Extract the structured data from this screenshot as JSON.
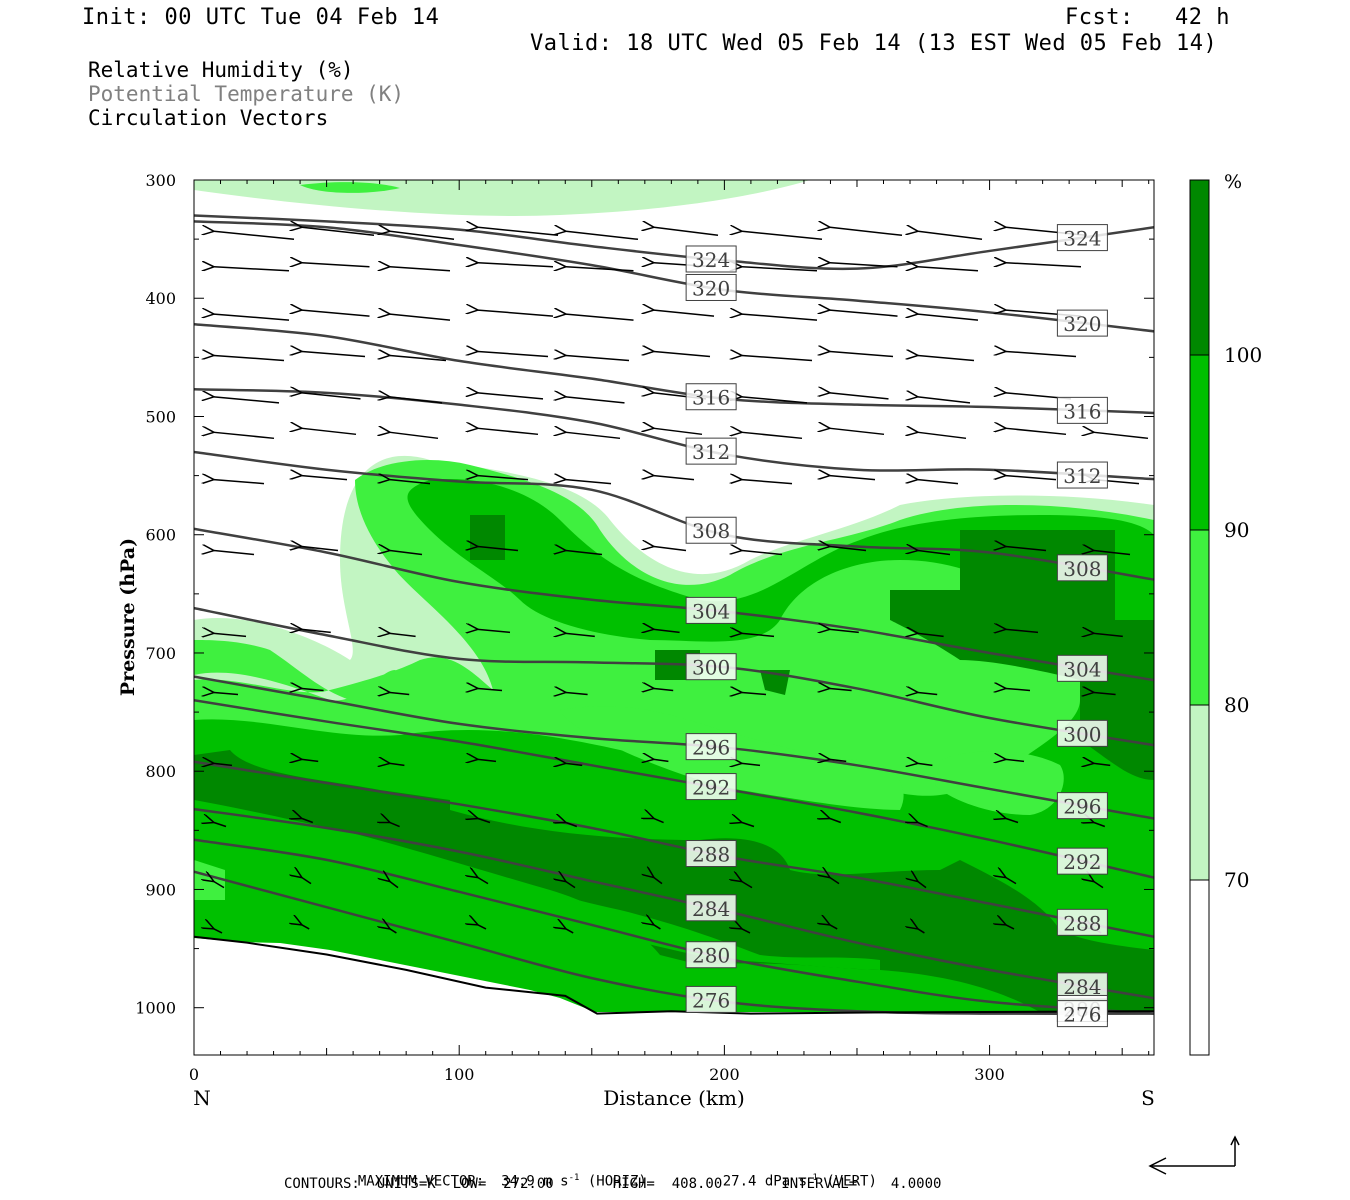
{
  "header": {
    "init": "Init: 00 UTC Tue 04 Feb 14",
    "fcst": "Fcst:   42 h",
    "valid": "Valid: 18 UTC Wed 05 Feb 14 (13 EST Wed 05 Feb 14)"
  },
  "legend": {
    "rh": "Relative Humidity (%)",
    "theta": "Potential Temperature (K)",
    "vectors": "Circulation Vectors"
  },
  "colors": {
    "rh70": "#c2f5c2",
    "rh80": "#3ff03f",
    "rh90": "#00c000",
    "rh100": "#008800",
    "contour": "#404040"
  },
  "chart_data": {
    "type": "heatmap",
    "xlabel": "Distance (km)",
    "ylabel": "Pressure (hPa)",
    "xlim": [
      0,
      362
    ],
    "ylim": [
      1040,
      300
    ],
    "x_ticks": [
      "0",
      "100",
      "200",
      "300"
    ],
    "y_ticks": [
      "300",
      "400",
      "500",
      "600",
      "700",
      "800",
      "900",
      "1000"
    ],
    "x_left_label": "N",
    "x_right_label": "S",
    "colorbar": {
      "unit": "%",
      "levels": [
        "70",
        "80",
        "90",
        "100"
      ]
    },
    "theta_contours": [
      {
        "label": "324",
        "x": [
          0,
          50,
          100,
          150,
          200,
          250,
          300,
          362
        ],
        "p": [
          330,
          335,
          342,
          356,
          368,
          375,
          360,
          340
        ]
      },
      {
        "label": "320",
        "x": [
          0,
          50,
          100,
          150,
          200,
          250,
          300,
          362
        ],
        "p": [
          335,
          340,
          355,
          372,
          393,
          402,
          412,
          428
        ]
      },
      {
        "label": "316",
        "x": [
          0,
          50,
          100,
          150,
          200,
          250,
          300,
          362
        ],
        "p": [
          422,
          432,
          453,
          468,
          485,
          490,
          492,
          497
        ]
      },
      {
        "label": "312",
        "x": [
          0,
          50,
          100,
          150,
          200,
          250,
          300,
          362
        ],
        "p": [
          477,
          480,
          490,
          505,
          532,
          545,
          545,
          553
        ]
      },
      {
        "label": "308",
        "x": [
          0,
          50,
          100,
          150,
          200,
          250,
          300,
          362
        ],
        "p": [
          530,
          545,
          555,
          562,
          600,
          610,
          615,
          638
        ]
      },
      {
        "label": "304",
        "x": [
          0,
          50,
          100,
          150,
          200,
          250,
          300,
          362
        ],
        "p": [
          595,
          615,
          640,
          655,
          665,
          680,
          700,
          723
        ]
      },
      {
        "label": "300",
        "x": [
          0,
          50,
          100,
          150,
          200,
          250,
          300,
          362
        ],
        "p": [
          662,
          685,
          705,
          708,
          712,
          730,
          755,
          778
        ]
      },
      {
        "label": "296",
        "x": [
          0,
          50,
          100,
          150,
          200,
          250,
          300,
          362
        ],
        "p": [
          720,
          740,
          760,
          772,
          780,
          795,
          815,
          840
        ]
      },
      {
        "label": "292",
        "x": [
          0,
          50,
          100,
          150,
          200,
          250,
          300,
          362
        ],
        "p": [
          740,
          758,
          775,
          795,
          815,
          835,
          858,
          890
        ]
      },
      {
        "label": "288",
        "x": [
          0,
          50,
          100,
          150,
          200,
          250,
          300,
          362
        ],
        "p": [
          792,
          810,
          828,
          848,
          872,
          890,
          912,
          940
        ]
      },
      {
        "label": "284",
        "x": [
          0,
          50,
          100,
          150,
          200,
          250,
          300,
          362
        ],
        "p": [
          832,
          848,
          868,
          893,
          918,
          945,
          968,
          992
        ]
      },
      {
        "label": "280",
        "x": [
          0,
          50,
          100,
          150,
          200,
          250,
          300,
          362
        ],
        "p": [
          858,
          875,
          902,
          930,
          958,
          978,
          995,
          1005
        ]
      },
      {
        "label": "276",
        "x": [
          0,
          50,
          100,
          150,
          200,
          250,
          300,
          362
        ],
        "p": [
          885,
          915,
          945,
          975,
          995,
          1003,
          1005,
          1005
        ]
      }
    ],
    "terrain": {
      "x": [
        0,
        20,
        50,
        80,
        110,
        140,
        152,
        180,
        210,
        260,
        362
      ],
      "p": [
        940,
        945,
        955,
        968,
        983,
        990,
        1005,
        1003,
        1005,
        1004,
        1003
      ]
    }
  },
  "footer": {
    "max_vector": "MAXIMUM VECTOR:  34.9 m s",
    "max_vector_horiz": "(HORIZ)",
    "max_vector_vert_val": "27.4 dPa s",
    "max_vector_vert": "(VERT)",
    "exp": "-1",
    "contours": "CONTOURS:  UNITS=K  LOW=  272.00       HIGH=  408.00       INTERVAL=    4.0000"
  }
}
